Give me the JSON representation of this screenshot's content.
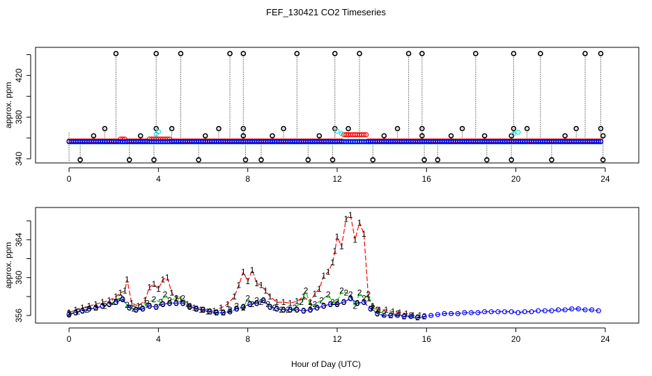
{
  "chart_data": {
    "title": "FEF_130421  CO2 Timeseries",
    "xlabel": "Hour of Day (UTC)",
    "colors": {
      "s1": "#ff0000",
      "s2": "#00cc00",
      "s3": "#0000ff",
      "cyan": "#00e5e5",
      "black": "#000000"
    },
    "panels": [
      {
        "type": "scatter",
        "ylabel": "approx. ppm",
        "xlim": [
          -1.5,
          25.5
        ],
        "ylim": [
          336,
          447
        ],
        "x_ticks": [
          0,
          4,
          8,
          12,
          16,
          20,
          24
        ],
        "x_tick_labels": [
          "0",
          "4",
          "8",
          "12",
          "16",
          "20",
          "24"
        ],
        "y_ticks": [
          340,
          360,
          380,
          400,
          420,
          440
        ],
        "y_tick_labels": [
          "340",
          "",
          "380",
          "",
          "420",
          ""
        ],
        "baseline_ppm": 356.5,
        "series": [
          {
            "name": "1",
            "color": "red",
            "marker": "circle"
          },
          {
            "name": "2",
            "color": "green",
            "marker": "circle"
          },
          {
            "name": "3",
            "color": "blue",
            "marker": "circle"
          }
        ],
        "high_spikes_x": [
          2.1,
          3.9,
          5.0,
          7.2,
          7.8,
          10.2,
          11.9,
          13.0,
          15.2,
          15.8,
          18.2,
          19.9,
          21.1,
          23.1,
          23.8
        ],
        "high_spikes_ppm": 441,
        "mid_spikes_x": [
          1.6,
          3.9,
          4.6,
          6.7,
          7.8,
          9.6,
          11.9,
          12.5,
          14.7,
          15.8,
          17.6,
          19.9,
          20.5,
          22.7,
          23.8
        ],
        "mid_spikes_ppm": 369,
        "low_spikes_x": [
          1.1,
          3.2,
          6.1,
          7.8,
          9.1,
          11.2,
          14.1,
          15.8,
          17.1,
          18.6,
          19.8,
          22.2,
          23.9
        ],
        "low_spikes_ppm": 362,
        "drop_spikes_x": [
          0.5,
          2.7,
          3.8,
          5.8,
          7.9,
          8.6,
          10.7,
          11.8,
          13.6,
          15.9,
          16.5,
          18.7,
          19.8,
          21.6,
          23.9
        ],
        "drop_spikes_ppm": 339,
        "cyan_points": [
          [
            3.9,
            363.5
          ],
          [
            4.0,
            366
          ],
          [
            12.0,
            366.5
          ],
          [
            12.2,
            364
          ],
          [
            19.9,
            364
          ],
          [
            20.1,
            365.5
          ]
        ]
      },
      {
        "type": "line",
        "ylabel": "approx. ppm",
        "xlim": [
          -1.5,
          25.5
        ],
        "ylim": [
          355.2,
          367.4
        ],
        "x_ticks": [
          0,
          4,
          8,
          12,
          16,
          20,
          24
        ],
        "x_tick_labels": [
          "0",
          "4",
          "8",
          "12",
          "16",
          "20",
          "24"
        ],
        "y_ticks": [
          356,
          358,
          360,
          362,
          364,
          366
        ],
        "y_tick_labels": [
          "356",
          "",
          "360",
          "",
          "364",
          ""
        ],
        "series": [
          {
            "name": "1",
            "color": "red",
            "marker": "1",
            "x": [
              0.0,
              0.3,
              0.6,
              0.9,
              1.2,
              1.5,
              1.8,
              2.1,
              2.3,
              2.5,
              2.6,
              2.8,
              3.1,
              3.4,
              3.6,
              3.8,
              4.0,
              4.2,
              4.4,
              4.6,
              4.8,
              5.0,
              5.3,
              5.6,
              5.9,
              6.2,
              6.5,
              6.8,
              7.1,
              7.4,
              7.6,
              7.8,
              8.0,
              8.2,
              8.4,
              8.6,
              8.8,
              9.0,
              9.3,
              9.6,
              9.9,
              10.2,
              10.5,
              10.8,
              11.0,
              11.2,
              11.4,
              11.6,
              11.8,
              11.9,
              12.0,
              12.2,
              12.4,
              12.6,
              12.8,
              13.0,
              13.2,
              13.4,
              13.6,
              13.9,
              14.2,
              14.5,
              14.8,
              15.1,
              15.4,
              15.7
            ],
            "y": [
              356.3,
              356.6,
              356.8,
              357.0,
              357.2,
              357.4,
              357.6,
              358.0,
              358.4,
              358.6,
              359.8,
              357.3,
              357.0,
              357.6,
              359.0,
              359.3,
              358.8,
              359.8,
              360.0,
              358.4,
              357.8,
              357.7,
              357.2,
              356.8,
              356.6,
              356.4,
              356.5,
              356.8,
              357.2,
              358.0,
              359.2,
              360.6,
              359.6,
              360.8,
              359.4,
              359.2,
              358.6,
              358.0,
              357.4,
              357.4,
              357.3,
              357.5,
              358.0,
              357.4,
              358.3,
              358.8,
              360.2,
              360.6,
              361.6,
              362.8,
              364.3,
              363.3,
              366.2,
              366.6,
              364.0,
              365.8,
              364.6,
              357.8,
              357.0,
              356.6,
              356.6,
              356.4,
              356.3,
              356.2,
              356.0,
              356.0
            ]
          },
          {
            "name": "2",
            "color": "green",
            "marker": "2",
            "x": [
              0.0,
              0.4,
              0.8,
              1.2,
              1.6,
              2.0,
              2.3,
              2.6,
              2.9,
              3.2,
              3.5,
              3.8,
              4.1,
              4.3,
              4.5,
              4.8,
              5.1,
              5.4,
              5.7,
              6.0,
              6.3,
              6.6,
              6.9,
              7.2,
              7.5,
              7.8,
              8.0,
              8.2,
              8.4,
              8.6,
              8.9,
              9.2,
              9.5,
              9.8,
              10.1,
              10.4,
              10.6,
              10.8,
              11.0,
              11.3,
              11.6,
              11.8,
              12.0,
              12.2,
              12.4,
              12.6,
              12.8,
              13.0,
              13.2,
              13.4,
              13.6,
              13.8,
              14.1,
              14.4,
              14.7,
              15.0,
              15.3,
              15.6,
              15.9
            ],
            "y": [
              356.2,
              356.4,
              356.6,
              356.8,
              357.0,
              357.4,
              357.9,
              357.1,
              356.7,
              356.9,
              357.3,
              357.7,
              357.4,
              358.2,
              357.6,
              357.8,
              357.8,
              357.0,
              356.7,
              356.6,
              356.4,
              356.3,
              356.3,
              356.6,
              357.0,
              356.8,
              357.8,
              357.2,
              357.6,
              357.4,
              357.2,
              356.8,
              356.6,
              356.6,
              356.8,
              357.4,
              358.6,
              357.0,
              357.2,
              357.6,
              358.2,
              357.4,
              357.4,
              358.6,
              358.4,
              358.2,
              357.0,
              358.4,
              357.8,
              358.2,
              356.8,
              356.6,
              356.2,
              356.0,
              356.2,
              355.9,
              356.0,
              355.8,
              355.9
            ]
          },
          {
            "name": "3",
            "color": "blue",
            "marker": "3",
            "x": [
              0.0,
              0.3,
              0.6,
              0.9,
              1.2,
              1.5,
              1.8,
              2.1,
              2.4,
              2.7,
              3.0,
              3.3,
              3.6,
              3.9,
              4.2,
              4.5,
              4.8,
              5.1,
              5.4,
              5.7,
              6.0,
              6.3,
              6.6,
              6.9,
              7.2,
              7.5,
              7.8,
              8.1,
              8.4,
              8.7,
              9.0,
              9.3,
              9.6,
              9.9,
              10.2,
              10.5,
              10.8,
              11.1,
              11.4,
              11.7,
              12.0,
              12.3,
              12.6,
              12.9,
              13.2,
              13.5,
              13.8,
              14.1,
              14.4,
              14.7,
              15.0,
              15.3,
              15.6,
              15.9,
              16.2,
              16.5,
              16.8,
              17.1,
              17.4,
              17.7,
              18.0,
              18.3,
              18.6,
              18.9,
              19.2,
              19.5,
              19.8,
              20.1,
              20.4,
              20.7,
              21.0,
              21.3,
              21.6,
              21.9,
              22.2,
              22.5,
              22.8,
              23.1,
              23.4,
              23.7
            ],
            "y": [
              356.1,
              356.3,
              356.5,
              356.7,
              356.8,
              357.0,
              357.2,
              357.4,
              357.7,
              356.8,
              356.6,
              356.7,
              357.0,
              356.9,
              357.2,
              357.3,
              357.3,
              357.3,
              356.9,
              356.7,
              356.6,
              356.4,
              356.3,
              356.3,
              356.4,
              356.7,
              356.9,
              357.2,
              357.3,
              357.6,
              356.9,
              356.7,
              356.6,
              356.6,
              356.6,
              356.5,
              356.6,
              356.8,
              357.0,
              357.2,
              357.2,
              357.4,
              357.8,
              357.3,
              357.4,
              356.7,
              356.2,
              356.0,
              356.0,
              356.0,
              355.9,
              355.9,
              355.8,
              355.9,
              356.0,
              356.1,
              356.2,
              356.2,
              356.2,
              356.3,
              356.3,
              356.3,
              356.4,
              356.4,
              356.4,
              356.4,
              356.4,
              356.3,
              356.4,
              356.4,
              356.5,
              356.5,
              356.5,
              356.6,
              356.6,
              356.7,
              356.7,
              356.6,
              356.6,
              356.5
            ]
          }
        ]
      }
    ]
  }
}
